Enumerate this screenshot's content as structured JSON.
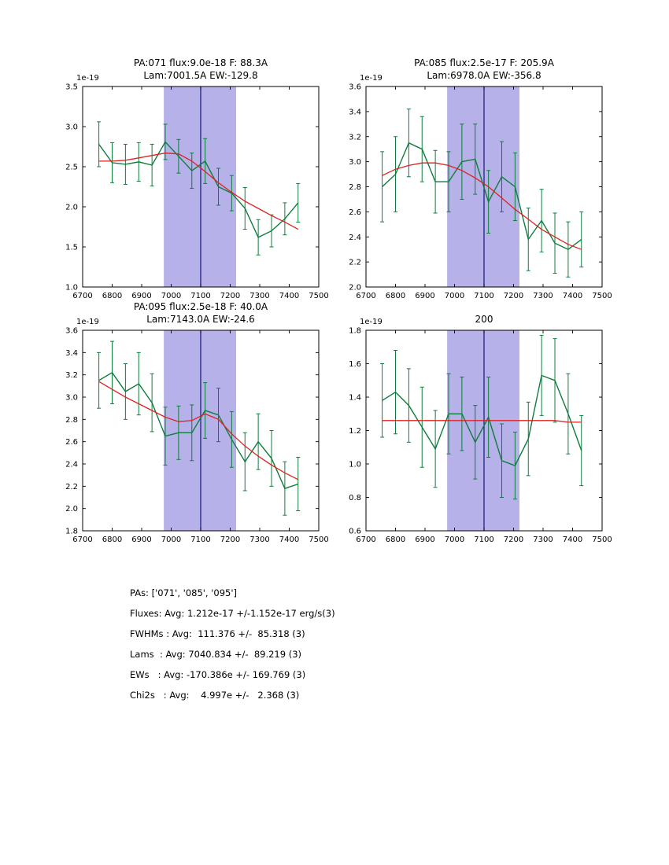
{
  "style": {
    "data_color": "#0e7d3c",
    "fit_color": "#dd2222",
    "band_color": "#b6b1e8",
    "vline_color": "#16167d",
    "frame_color": "#000000"
  },
  "summary": {
    "lines": [
      "PAs: ['071', '085', '095']",
      "Fluxes: Avg: 1.212e-17 +/-1.152e-17 erg/s(3)",
      "FWHMs : Avg:  111.376 +/-  85.318 (3)",
      "Lams  : Avg: 7040.834 +/-  89.219 (3)",
      "EWs   : Avg: -170.386e +/- 169.769 (3)",
      "Chi2s   : Avg:    4.997e +/-   2.368 (3)"
    ]
  },
  "chart_data": [
    {
      "type": "line",
      "title": [
        "PA:071 flux:9.0e-18 F: 88.3A",
        "Lam:7001.5A EW:-129.8"
      ],
      "offset_label": "1e-19",
      "xlim": [
        6700,
        7500
      ],
      "ylim": [
        1.0,
        3.5
      ],
      "xticks": [
        6700,
        6800,
        6900,
        7000,
        7100,
        7200,
        7300,
        7400,
        7500
      ],
      "yticks": [
        1.0,
        1.5,
        2.0,
        2.5,
        3.0,
        3.5
      ],
      "band": [
        6975,
        7220
      ],
      "vline": 7100,
      "x": [
        6755,
        6800,
        6845,
        6890,
        6935,
        6980,
        7025,
        7070,
        7115,
        7160,
        7205,
        7250,
        7295,
        7340,
        7385,
        7430
      ],
      "y": [
        2.78,
        2.55,
        2.53,
        2.56,
        2.52,
        2.81,
        2.63,
        2.45,
        2.57,
        2.25,
        2.17,
        1.98,
        1.62,
        1.7,
        1.85,
        2.05
      ],
      "yerr": [
        0.28,
        0.25,
        0.25,
        0.24,
        0.26,
        0.22,
        0.21,
        0.22,
        0.28,
        0.23,
        0.22,
        0.26,
        0.22,
        0.2,
        0.2,
        0.24
      ],
      "fit": [
        2.57,
        2.57,
        2.58,
        2.61,
        2.64,
        2.67,
        2.66,
        2.57,
        2.44,
        2.3,
        2.18,
        2.07,
        1.98,
        1.89,
        1.81,
        1.72
      ]
    },
    {
      "type": "line",
      "title": [
        "PA:085 flux:2.5e-17 F: 205.9A",
        "Lam:6978.0A EW:-356.8"
      ],
      "offset_label": "1e-19",
      "xlim": [
        6700,
        7500
      ],
      "ylim": [
        2.0,
        3.6
      ],
      "xticks": [
        6700,
        6800,
        6900,
        7000,
        7100,
        7200,
        7300,
        7400,
        7500
      ],
      "yticks": [
        2.0,
        2.2,
        2.4,
        2.6,
        2.8,
        3.0,
        3.2,
        3.4,
        3.6
      ],
      "band": [
        6975,
        7220
      ],
      "vline": 7100,
      "x": [
        6755,
        6800,
        6845,
        6890,
        6935,
        6980,
        7025,
        7070,
        7115,
        7160,
        7205,
        7250,
        7295,
        7340,
        7385,
        7430
      ],
      "y": [
        2.8,
        2.9,
        3.15,
        3.1,
        2.84,
        2.84,
        3.0,
        3.02,
        2.68,
        2.88,
        2.8,
        2.38,
        2.53,
        2.35,
        2.3,
        2.38
      ],
      "yerr": [
        0.28,
        0.3,
        0.27,
        0.26,
        0.25,
        0.24,
        0.3,
        0.28,
        0.25,
        0.28,
        0.27,
        0.25,
        0.25,
        0.24,
        0.22,
        0.22
      ],
      "fit": [
        2.89,
        2.94,
        2.97,
        2.99,
        2.99,
        2.97,
        2.93,
        2.87,
        2.8,
        2.71,
        2.62,
        2.54,
        2.46,
        2.4,
        2.34,
        2.3
      ]
    },
    {
      "type": "line",
      "title": [
        "PA:095 flux:2.5e-18 F: 40.0A",
        "Lam:7143.0A EW:-24.6"
      ],
      "offset_label": "1e-19",
      "xlim": [
        6700,
        7500
      ],
      "ylim": [
        1.8,
        3.6
      ],
      "xticks": [
        6700,
        6800,
        6900,
        7000,
        7100,
        7200,
        7300,
        7400,
        7500
      ],
      "yticks": [
        1.8,
        2.0,
        2.2,
        2.4,
        2.6,
        2.8,
        3.0,
        3.2,
        3.4,
        3.6
      ],
      "band": [
        6975,
        7220
      ],
      "vline": 7100,
      "x": [
        6755,
        6800,
        6845,
        6890,
        6935,
        6980,
        7025,
        7070,
        7115,
        7160,
        7205,
        7250,
        7295,
        7340,
        7385,
        7430
      ],
      "y": [
        3.15,
        3.22,
        3.05,
        3.12,
        2.95,
        2.65,
        2.68,
        2.68,
        2.88,
        2.84,
        2.62,
        2.42,
        2.6,
        2.45,
        2.18,
        2.22
      ],
      "yerr": [
        0.25,
        0.28,
        0.25,
        0.28,
        0.26,
        0.26,
        0.24,
        0.25,
        0.25,
        0.24,
        0.25,
        0.26,
        0.25,
        0.25,
        0.24,
        0.24
      ],
      "fit": [
        3.14,
        3.07,
        3.0,
        2.94,
        2.88,
        2.82,
        2.78,
        2.79,
        2.85,
        2.8,
        2.67,
        2.56,
        2.47,
        2.39,
        2.32,
        2.26
      ]
    },
    {
      "type": "line",
      "title": [
        "200"
      ],
      "offset_label": "1e-19",
      "xlim": [
        6700,
        7500
      ],
      "ylim": [
        0.6,
        1.8
      ],
      "xticks": [
        6700,
        6800,
        6900,
        7000,
        7100,
        7200,
        7300,
        7400,
        7500
      ],
      "yticks": [
        0.6,
        0.8,
        1.0,
        1.2,
        1.4,
        1.6,
        1.8
      ],
      "band": [
        6975,
        7220
      ],
      "vline": 7100,
      "x": [
        6755,
        6800,
        6845,
        6890,
        6935,
        6980,
        7025,
        7070,
        7115,
        7160,
        7205,
        7250,
        7295,
        7340,
        7385,
        7430
      ],
      "y": [
        1.38,
        1.43,
        1.35,
        1.22,
        1.09,
        1.3,
        1.3,
        1.13,
        1.28,
        1.02,
        0.99,
        1.15,
        1.53,
        1.5,
        1.3,
        1.08
      ],
      "yerr": [
        0.22,
        0.25,
        0.22,
        0.24,
        0.23,
        0.24,
        0.22,
        0.22,
        0.24,
        0.22,
        0.2,
        0.22,
        0.24,
        0.25,
        0.24,
        0.21
      ],
      "fit": [
        1.26,
        1.26,
        1.26,
        1.26,
        1.26,
        1.26,
        1.26,
        1.26,
        1.26,
        1.26,
        1.26,
        1.26,
        1.26,
        1.26,
        1.25,
        1.25
      ]
    }
  ]
}
